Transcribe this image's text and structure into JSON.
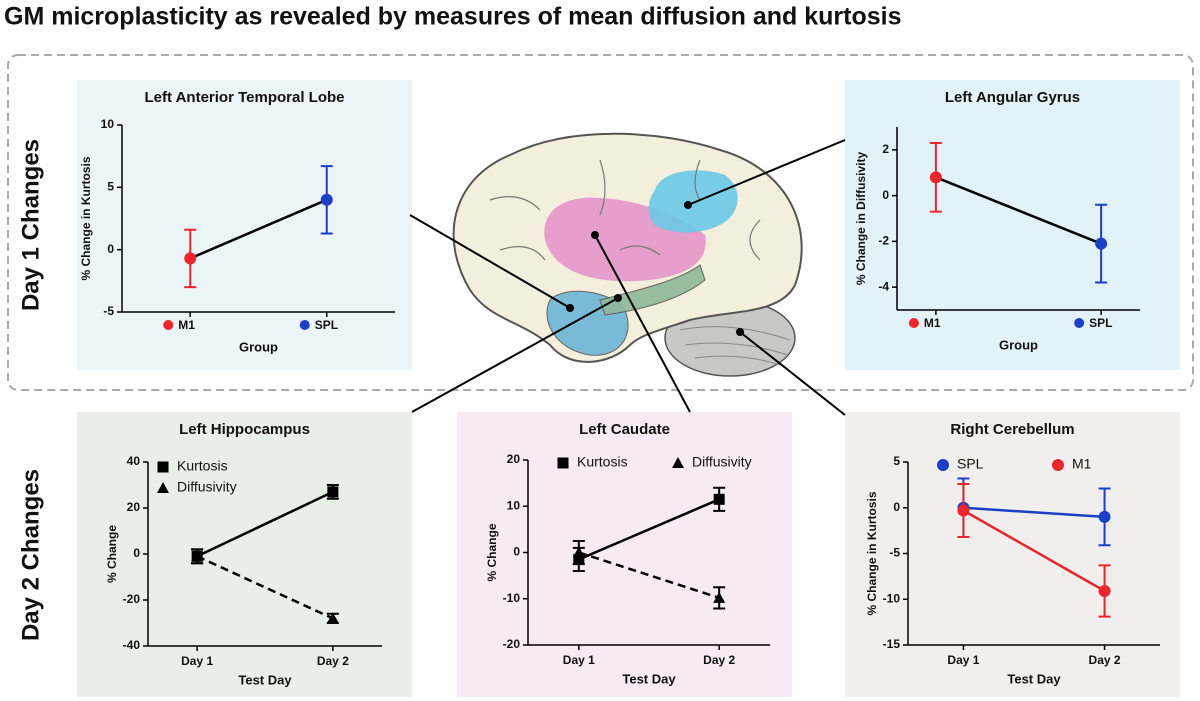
{
  "title": "GM microplasticity as revealed by measures of mean diffusion and kurtosis",
  "row_labels": [
    "Day 1 Changes",
    "Day 2 Changes"
  ],
  "chart_data": [
    {
      "type": "line",
      "title": "Left Anterior Temporal Lobe",
      "x_label": "Group",
      "y_label": "% Change in Kurtosis",
      "categories": [
        "M1",
        "SPL"
      ],
      "ylim": [
        -5,
        10
      ],
      "yticks": [
        -5,
        0,
        5,
        10
      ],
      "panel_color": "#eaf4f9",
      "series": [
        {
          "values": [
            -0.7,
            4.0
          ],
          "errors": [
            2.3,
            2.7
          ],
          "color": "#000000",
          "point_colors": [
            "#e8262b",
            "#1c3fc6"
          ],
          "marker": "circle",
          "dashed": false
        }
      ]
    },
    {
      "type": "line",
      "title": "Left Angular Gyrus",
      "x_label": "Group",
      "y_label": "% Change in Diffusivity",
      "categories": [
        "M1",
        "SPL"
      ],
      "ylim": [
        -5,
        3
      ],
      "yticks": [
        -4,
        -2,
        0,
        2
      ],
      "panel_color": "#e3f2f9",
      "series": [
        {
          "values": [
            0.8,
            -2.1
          ],
          "errors": [
            1.5,
            1.7
          ],
          "color": "#000000",
          "point_colors": [
            "#e8262b",
            "#1c3fc6"
          ],
          "marker": "circle",
          "dashed": false
        }
      ]
    },
    {
      "type": "line",
      "title": "Left Hippocampus",
      "x_label": "Test Day",
      "y_label": "% Change",
      "categories": [
        "Day 1",
        "Day 2"
      ],
      "ylim": [
        -40,
        40
      ],
      "yticks": [
        -40,
        -20,
        0,
        20,
        40
      ],
      "panel_color": "#e9eee9",
      "legend": "top-left",
      "series": [
        {
          "name": "Kurtosis",
          "values": [
            -1,
            27
          ],
          "errors": [
            3,
            3
          ],
          "color": "#000000",
          "marker": "square",
          "dashed": false
        },
        {
          "name": "Diffusivity",
          "values": [
            -1,
            -28
          ],
          "errors": [
            3,
            2
          ],
          "color": "#000000",
          "marker": "triangle",
          "dashed": true
        }
      ]
    },
    {
      "type": "line",
      "title": "Left Caudate",
      "x_label": "Test Day",
      "y_label": "% Change",
      "categories": [
        "Day 1",
        "Day 2"
      ],
      "ylim": [
        -20,
        20
      ],
      "yticks": [
        -20,
        -10,
        0,
        10,
        20
      ],
      "panel_color": "#f8eaf3",
      "legend": "top",
      "series": [
        {
          "name": "Kurtosis",
          "values": [
            -1.5,
            11.5
          ],
          "errors": [
            2.5,
            2.5
          ],
          "color": "#000000",
          "marker": "square",
          "dashed": false
        },
        {
          "name": "Diffusivity",
          "values": [
            0,
            -9.8
          ],
          "errors": [
            2.5,
            2.3
          ],
          "color": "#000000",
          "marker": "triangle",
          "dashed": true
        }
      ]
    },
    {
      "type": "line",
      "title": "Right Cerebellum",
      "x_label": "Test Day",
      "y_label": "% Change in Kurtosis",
      "categories": [
        "Day 1",
        "Day 2"
      ],
      "ylim": [
        -15,
        5
      ],
      "yticks": [
        -15,
        -10,
        -5,
        0,
        5
      ],
      "panel_color": "#f0efed",
      "legend": "top",
      "series": [
        {
          "name": "SPL",
          "values": [
            0,
            -1
          ],
          "errors": [
            3.2,
            3.1
          ],
          "color": "#1c3fc6",
          "marker": "circle",
          "dashed": false
        },
        {
          "name": "M1",
          "values": [
            -0.3,
            -9.1
          ],
          "errors": [
            2.9,
            2.8
          ],
          "color": "#e8262b",
          "marker": "circle",
          "dashed": false
        }
      ]
    }
  ]
}
